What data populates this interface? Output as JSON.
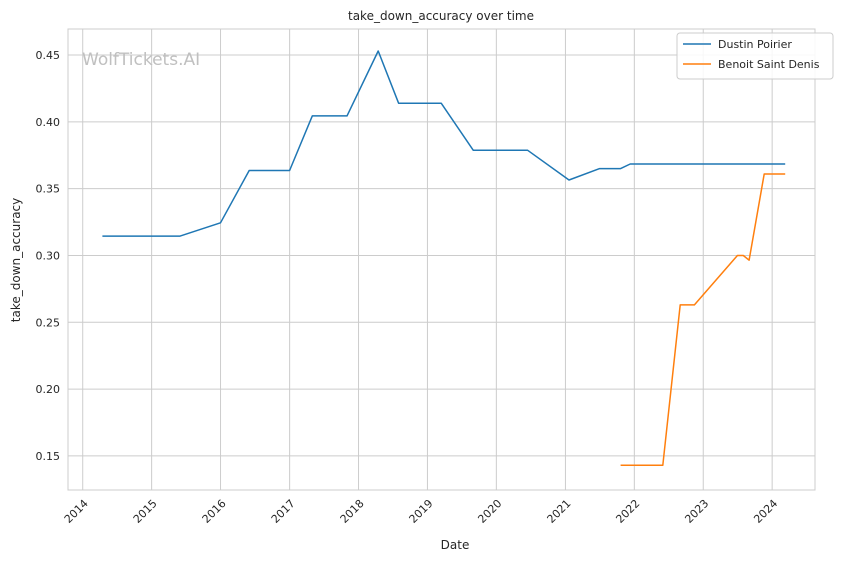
{
  "chart_data": {
    "type": "line",
    "title": "take_down_accuracy over time",
    "xlabel": "Date",
    "ylabel": "take_down_accuracy",
    "watermark": "WolfTickets.AI",
    "x_ticks": [
      "2014",
      "2015",
      "2016",
      "2017",
      "2018",
      "2019",
      "2020",
      "2021",
      "2022",
      "2023",
      "2024"
    ],
    "y_ticks": [
      "0.15",
      "0.20",
      "0.25",
      "0.30",
      "0.35",
      "0.40",
      "0.45"
    ],
    "xlim": [
      "2013-10-15",
      "2024-08-15"
    ],
    "ylim": [
      0.1245,
      0.4695
    ],
    "grid": true,
    "legend_position": "top-right",
    "series": [
      {
        "name": "Dustin Poirier",
        "color": "#1f77b4",
        "points": [
          [
            "2014-04-15",
            0.3145
          ],
          [
            "2015-06-01",
            0.3145
          ],
          [
            "2016-01-01",
            0.3245
          ],
          [
            "2016-06-01",
            0.3636
          ],
          [
            "2017-01-01",
            0.3636
          ],
          [
            "2017-05-01",
            0.4045
          ],
          [
            "2017-11-01",
            0.4045
          ],
          [
            "2018-04-15",
            0.453
          ],
          [
            "2018-08-01",
            0.414
          ],
          [
            "2019-03-15",
            0.414
          ],
          [
            "2019-09-01",
            0.3787
          ],
          [
            "2020-06-15",
            0.3787
          ],
          [
            "2021-01-20",
            0.3565
          ],
          [
            "2021-07-01",
            0.365
          ],
          [
            "2021-10-20",
            0.365
          ],
          [
            "2021-12-10",
            0.3685
          ],
          [
            "2024-03-10",
            0.3685
          ]
        ]
      },
      {
        "name": "Benoit Saint Denis",
        "color": "#ff7f0e",
        "points": [
          [
            "2021-10-20",
            0.143
          ],
          [
            "2022-06-01",
            0.143
          ],
          [
            "2022-09-01",
            0.263
          ],
          [
            "2022-11-15",
            0.263
          ],
          [
            "2023-07-01",
            0.3
          ],
          [
            "2023-08-01",
            0.3
          ],
          [
            "2023-09-01",
            0.2965
          ],
          [
            "2023-11-20",
            0.361
          ],
          [
            "2024-03-10",
            0.361
          ]
        ]
      }
    ]
  }
}
